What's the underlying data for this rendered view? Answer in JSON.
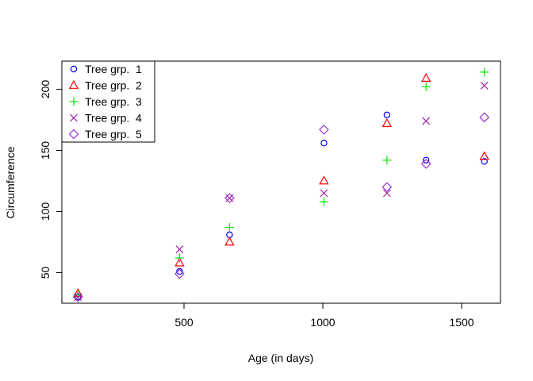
{
  "chart_data": {
    "type": "scatter",
    "xlabel": "Age (in days)",
    "ylabel": "Circumference",
    "xlim": [
      60,
      1640
    ],
    "ylim": [
      25,
      223
    ],
    "xticks": [
      500,
      1000,
      1500
    ],
    "yticks": [
      50,
      100,
      150,
      200
    ],
    "legend_position": "top-left",
    "x": [
      118,
      484,
      664,
      1004,
      1231,
      1372,
      1582
    ],
    "series": [
      {
        "name": "Tree grp.  1",
        "marker": "circle",
        "color": "#0000ff",
        "values": [
          30,
          51,
          81,
          156,
          179,
          142,
          141
        ]
      },
      {
        "name": "Tree grp.  2",
        "marker": "triangle",
        "color": "#ff0000",
        "values": [
          33,
          58,
          75,
          125,
          172,
          209,
          145
        ]
      },
      {
        "name": "Tree grp.  3",
        "marker": "plus",
        "color": "#00ee00",
        "values": [
          32,
          62,
          87,
          108,
          142,
          202,
          214
        ]
      },
      {
        "name": "Tree grp.  4",
        "marker": "cross",
        "color": "#a020a0",
        "values": [
          30,
          69,
          111,
          115,
          115,
          174,
          203
        ]
      },
      {
        "name": "Tree grp.  5",
        "marker": "diamond",
        "color": "#9932cc",
        "values": [
          30,
          49,
          111,
          167,
          120,
          139,
          177
        ]
      }
    ]
  }
}
